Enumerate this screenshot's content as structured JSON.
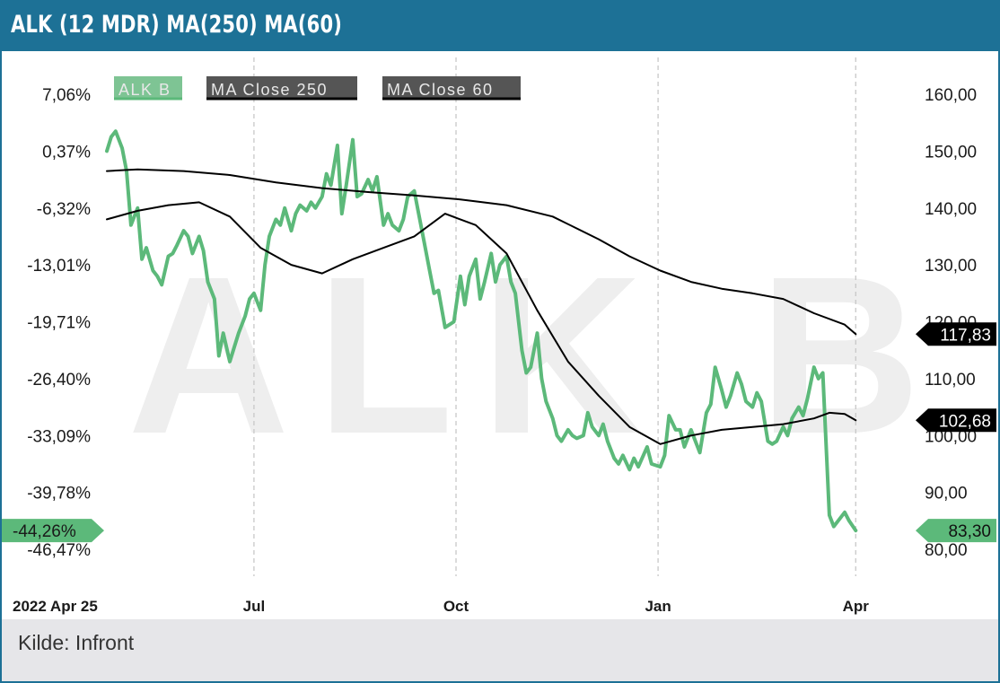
{
  "title": "ALK (12 MDR) MA(250) MA(60)",
  "source": "Kilde: Infront",
  "watermark": "ALK B",
  "colors": {
    "header": "#1d7196",
    "price": "#5cb97a",
    "ma": "#000000",
    "footer": "#e6e6e9"
  },
  "chart_data": {
    "type": "line",
    "x_labels": [
      "2022 Apr 25",
      "Jul",
      "Oct",
      "Jan",
      "Apr"
    ],
    "x_label_dates": [
      "2022-04-25",
      "2022-07-01",
      "2022-10-01",
      "2023-01-01",
      "2023-04-01"
    ],
    "x_range": [
      "2022-04-25",
      "2023-04-25"
    ],
    "y_right": {
      "range": [
        80,
        160
      ],
      "ticks": [
        "80,00",
        "90,00",
        "100,00",
        "110,00",
        "120,00",
        "130,00",
        "140,00",
        "150,00",
        "160,00"
      ],
      "tick_values": [
        80,
        90,
        100,
        110,
        120,
        130,
        140,
        150,
        160
      ]
    },
    "y_left_ticks": [
      "7,06%",
      "0,37%",
      "-6,32%",
      "-13,01%",
      "-19,71%",
      "-26,40%",
      "-33,09%",
      "-39,78%",
      "-46,47%"
    ],
    "legend": [
      "ALK  B",
      "MA  Close  250",
      "MA  Close  60"
    ],
    "last_values": {
      "price": "83,30",
      "price_pct": "-44,26%",
      "ma250": "117,83",
      "ma60": "102,68"
    },
    "grid": "vertical dashed",
    "series": [
      {
        "name": "ALK  B",
        "color": "#5cb97a",
        "points": [
          [
            "2022-04-25",
            150.0
          ],
          [
            "2022-04-27",
            152.5
          ],
          [
            "2022-04-29",
            153.5
          ],
          [
            "2022-05-02",
            150.5
          ],
          [
            "2022-05-04",
            146.5
          ],
          [
            "2022-05-06",
            137.0
          ],
          [
            "2022-05-09",
            140.0
          ],
          [
            "2022-05-11",
            131.0
          ],
          [
            "2022-05-13",
            133.0
          ],
          [
            "2022-05-16",
            129.0
          ],
          [
            "2022-05-18",
            128.0
          ],
          [
            "2022-05-20",
            126.5
          ],
          [
            "2022-05-23",
            131.5
          ],
          [
            "2022-05-25",
            132.0
          ],
          [
            "2022-05-27",
            133.5
          ],
          [
            "2022-05-30",
            136.0
          ],
          [
            "2022-06-01",
            135.0
          ],
          [
            "2022-06-03",
            132.0
          ],
          [
            "2022-06-06",
            135.0
          ],
          [
            "2022-06-08",
            132.5
          ],
          [
            "2022-06-10",
            127.0
          ],
          [
            "2022-06-13",
            124.0
          ],
          [
            "2022-06-15",
            114.0
          ],
          [
            "2022-06-17",
            118.0
          ],
          [
            "2022-06-20",
            113.0
          ],
          [
            "2022-06-22",
            115.5
          ],
          [
            "2022-06-24",
            118.0
          ],
          [
            "2022-06-27",
            121.0
          ],
          [
            "2022-06-29",
            124.0
          ],
          [
            "2022-07-01",
            125.0
          ],
          [
            "2022-07-04",
            122.0
          ],
          [
            "2022-07-06",
            130.0
          ],
          [
            "2022-07-08",
            135.0
          ],
          [
            "2022-07-11",
            138.0
          ],
          [
            "2022-07-13",
            137.0
          ],
          [
            "2022-07-15",
            140.0
          ],
          [
            "2022-07-18",
            136.0
          ],
          [
            "2022-07-20",
            139.0
          ],
          [
            "2022-07-22",
            140.5
          ],
          [
            "2022-07-25",
            139.5
          ],
          [
            "2022-07-27",
            141.0
          ],
          [
            "2022-07-29",
            140.0
          ],
          [
            "2022-08-01",
            142.0
          ],
          [
            "2022-08-03",
            146.0
          ],
          [
            "2022-08-05",
            144.0
          ],
          [
            "2022-08-08",
            151.0
          ],
          [
            "2022-08-10",
            139.0
          ],
          [
            "2022-08-12",
            144.0
          ],
          [
            "2022-08-15",
            152.0
          ],
          [
            "2022-08-17",
            142.0
          ],
          [
            "2022-08-19",
            142.5
          ],
          [
            "2022-08-22",
            145.0
          ],
          [
            "2022-08-24",
            143.0
          ],
          [
            "2022-08-26",
            145.5
          ],
          [
            "2022-08-29",
            137.0
          ],
          [
            "2022-08-31",
            139.0
          ],
          [
            "2022-09-02",
            137.0
          ],
          [
            "2022-09-05",
            136.0
          ],
          [
            "2022-09-07",
            138.0
          ],
          [
            "2022-09-09",
            142.0
          ],
          [
            "2022-09-12",
            143.0
          ],
          [
            "2022-09-14",
            139.0
          ],
          [
            "2022-09-16",
            135.0
          ],
          [
            "2022-09-19",
            129.0
          ],
          [
            "2022-09-21",
            125.0
          ],
          [
            "2022-09-23",
            125.5
          ],
          [
            "2022-09-26",
            119.0
          ],
          [
            "2022-09-28",
            119.5
          ],
          [
            "2022-09-30",
            120.0
          ],
          [
            "2022-10-03",
            128.0
          ],
          [
            "2022-10-05",
            123.0
          ],
          [
            "2022-10-07",
            128.0
          ],
          [
            "2022-10-10",
            131.0
          ],
          [
            "2022-10-12",
            124.0
          ],
          [
            "2022-10-14",
            127.0
          ],
          [
            "2022-10-17",
            132.0
          ],
          [
            "2022-10-19",
            127.0
          ],
          [
            "2022-10-21",
            130.0
          ],
          [
            "2022-10-24",
            131.5
          ],
          [
            "2022-10-26",
            127.0
          ],
          [
            "2022-10-28",
            125.0
          ],
          [
            "2022-10-31",
            115.0
          ],
          [
            "2022-11-02",
            111.0
          ],
          [
            "2022-11-04",
            112.0
          ],
          [
            "2022-11-07",
            118.0
          ],
          [
            "2022-11-09",
            110.0
          ],
          [
            "2022-11-11",
            106.0
          ],
          [
            "2022-11-14",
            103.0
          ],
          [
            "2022-11-16",
            100.0
          ],
          [
            "2022-11-18",
            99.0
          ],
          [
            "2022-11-21",
            101.0
          ],
          [
            "2022-11-23",
            100.0
          ],
          [
            "2022-11-25",
            99.5
          ],
          [
            "2022-11-28",
            100.0
          ],
          [
            "2022-11-30",
            104.0
          ],
          [
            "2022-12-02",
            101.5
          ],
          [
            "2022-12-05",
            100.0
          ],
          [
            "2022-12-07",
            102.0
          ],
          [
            "2022-12-09",
            99.0
          ],
          [
            "2022-12-12",
            96.0
          ],
          [
            "2022-12-14",
            95.0
          ],
          [
            "2022-12-16",
            96.5
          ],
          [
            "2022-12-19",
            94.0
          ],
          [
            "2022-12-21",
            96.0
          ],
          [
            "2022-12-23",
            94.5
          ],
          [
            "2022-12-27",
            98.0
          ],
          [
            "2022-12-29",
            95.0
          ],
          [
            "2023-01-02",
            94.5
          ],
          [
            "2023-01-04",
            96.5
          ],
          [
            "2023-01-06",
            103.5
          ],
          [
            "2023-01-09",
            101.0
          ],
          [
            "2023-01-11",
            101.0
          ],
          [
            "2023-01-13",
            98.0
          ],
          [
            "2023-01-16",
            101.0
          ],
          [
            "2023-01-18",
            99.0
          ],
          [
            "2023-01-20",
            97.0
          ],
          [
            "2023-01-23",
            104.0
          ],
          [
            "2023-01-25",
            105.5
          ],
          [
            "2023-01-27",
            112.0
          ],
          [
            "2023-01-30",
            108.0
          ],
          [
            "2023-02-01",
            105.0
          ],
          [
            "2023-02-03",
            107.0
          ],
          [
            "2023-02-06",
            111.0
          ],
          [
            "2023-02-08",
            109.0
          ],
          [
            "2023-02-10",
            106.0
          ],
          [
            "2023-02-13",
            105.0
          ],
          [
            "2023-02-15",
            107.5
          ],
          [
            "2023-02-17",
            106.0
          ],
          [
            "2023-02-20",
            99.0
          ],
          [
            "2023-02-22",
            98.5
          ],
          [
            "2023-02-24",
            99.0
          ],
          [
            "2023-02-27",
            101.5
          ],
          [
            "2023-03-01",
            100.0
          ],
          [
            "2023-03-03",
            103.0
          ],
          [
            "2023-03-06",
            105.0
          ],
          [
            "2023-03-08",
            103.5
          ],
          [
            "2023-03-10",
            106.5
          ],
          [
            "2023-03-13",
            112.0
          ],
          [
            "2023-03-15",
            110.0
          ],
          [
            "2023-03-17",
            111.0
          ],
          [
            "2023-03-20",
            86.0
          ],
          [
            "2023-03-22",
            84.0
          ],
          [
            "2023-03-24",
            85.0
          ],
          [
            "2023-03-27",
            86.5
          ],
          [
            "2023-03-29",
            85.0
          ],
          [
            "2023-04-01",
            83.3
          ]
        ]
      },
      {
        "name": "MA  Close  250",
        "color": "#000000",
        "points": [
          [
            "2022-04-25",
            146.5
          ],
          [
            "2022-05-09",
            146.8
          ],
          [
            "2022-05-30",
            146.5
          ],
          [
            "2022-06-20",
            145.8
          ],
          [
            "2022-07-11",
            144.5
          ],
          [
            "2022-08-01",
            143.5
          ],
          [
            "2022-08-22",
            142.8
          ],
          [
            "2022-09-12",
            142.2
          ],
          [
            "2022-10-03",
            141.5
          ],
          [
            "2022-10-24",
            140.5
          ],
          [
            "2022-11-14",
            138.5
          ],
          [
            "2022-12-05",
            134.5
          ],
          [
            "2022-12-19",
            131.5
          ],
          [
            "2023-01-02",
            129.0
          ],
          [
            "2023-01-16",
            127.0
          ],
          [
            "2023-01-30",
            125.8
          ],
          [
            "2023-02-13",
            125.0
          ],
          [
            "2023-02-27",
            124.0
          ],
          [
            "2023-03-13",
            121.5
          ],
          [
            "2023-03-27",
            119.5
          ],
          [
            "2023-04-01",
            117.83
          ]
        ]
      },
      {
        "name": "MA  Close  60",
        "color": "#000000",
        "points": [
          [
            "2022-04-25",
            138.0
          ],
          [
            "2022-05-09",
            139.5
          ],
          [
            "2022-05-23",
            140.5
          ],
          [
            "2022-06-06",
            141.0
          ],
          [
            "2022-06-20",
            138.5
          ],
          [
            "2022-07-04",
            133.0
          ],
          [
            "2022-07-18",
            130.0
          ],
          [
            "2022-08-01",
            128.5
          ],
          [
            "2022-08-15",
            131.0
          ],
          [
            "2022-08-29",
            133.0
          ],
          [
            "2022-09-12",
            135.0
          ],
          [
            "2022-09-26",
            139.0
          ],
          [
            "2022-10-10",
            137.0
          ],
          [
            "2022-10-24",
            132.0
          ],
          [
            "2022-11-07",
            122.0
          ],
          [
            "2022-11-21",
            113.0
          ],
          [
            "2022-12-05",
            107.0
          ],
          [
            "2022-12-19",
            101.5
          ],
          [
            "2023-01-02",
            98.5
          ],
          [
            "2023-01-16",
            100.0
          ],
          [
            "2023-01-30",
            101.0
          ],
          [
            "2023-02-13",
            101.5
          ],
          [
            "2023-02-27",
            102.0
          ],
          [
            "2023-03-13",
            103.0
          ],
          [
            "2023-03-20",
            104.0
          ],
          [
            "2023-03-27",
            103.8
          ],
          [
            "2023-04-01",
            102.68
          ]
        ]
      }
    ]
  }
}
